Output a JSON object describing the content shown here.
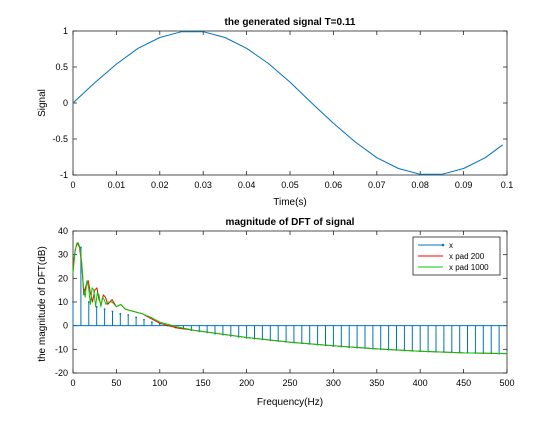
{
  "chart_data": [
    {
      "type": "line",
      "title": "the generated signal T=0.11",
      "xlabel": "Time(s)",
      "ylabel": "Signal",
      "xlim": [
        0,
        0.1
      ],
      "ylim": [
        -1,
        1
      ],
      "xticks": [
        "0",
        "0.01",
        "0.02",
        "0.03",
        "0.04",
        "0.05",
        "0.06",
        "0.07",
        "0.08",
        "0.09",
        "0.1"
      ],
      "xtick_values": [
        0,
        0.01,
        0.02,
        0.03,
        0.04,
        0.05,
        0.06,
        0.07,
        0.08,
        0.09,
        0.1
      ],
      "yticks": [
        "-1",
        "-0.5",
        "0",
        "0.5",
        "1"
      ],
      "ytick_values": [
        -1,
        -0.5,
        0,
        0.5,
        1
      ],
      "grid": false,
      "series": [
        {
          "color": "#0072BD",
          "x": [
            0,
            0.005,
            0.01,
            0.015,
            0.02,
            0.025,
            0.03,
            0.035,
            0.04,
            0.045,
            0.05,
            0.055,
            0.06,
            0.065,
            0.07,
            0.075,
            0.08,
            0.085,
            0.09,
            0.095,
            0.099
          ],
          "y": [
            0,
            0.28,
            0.54,
            0.76,
            0.91,
            0.99,
            0.99,
            0.91,
            0.76,
            0.55,
            0.29,
            0.0,
            -0.28,
            -0.54,
            -0.76,
            -0.91,
            -0.99,
            -0.99,
            -0.91,
            -0.76,
            -0.58
          ]
        }
      ]
    },
    {
      "type": "stem+line",
      "title": "magnitude of DFT of signal",
      "xlabel": "Frequency(Hz)",
      "ylabel": "the magnitude of DFT(dB)",
      "xlim": [
        0,
        500
      ],
      "ylim": [
        -20,
        40
      ],
      "xticks": [
        "0",
        "50",
        "100",
        "150",
        "200",
        "250",
        "300",
        "350",
        "400",
        "450",
        "500"
      ],
      "xtick_values": [
        0,
        50,
        100,
        150,
        200,
        250,
        300,
        350,
        400,
        450,
        500
      ],
      "yticks": [
        "-20",
        "-10",
        "0",
        "10",
        "20",
        "30",
        "40"
      ],
      "ytick_values": [
        -20,
        -10,
        0,
        10,
        20,
        30,
        40
      ],
      "grid": false,
      "legend_position": "top-right",
      "series": [
        {
          "name": "x",
          "style": "stem",
          "color": "#0072BD",
          "x": [
            0,
            9.1,
            18.2,
            27.3,
            36.4,
            45.5,
            54.5,
            63.6,
            72.7,
            81.8,
            90.9,
            100,
            109.1,
            118.2,
            127.3,
            136.4,
            145.5,
            154.5,
            163.6,
            172.7,
            181.8,
            190.9,
            200,
            209.1,
            218.2,
            227.3,
            236.4,
            245.5,
            254.5,
            263.6,
            272.7,
            281.8,
            290.9,
            300,
            309.1,
            318.2,
            327.3,
            336.4,
            345.5,
            354.5,
            363.6,
            372.7,
            381.8,
            390.9,
            400,
            409.1,
            418.2,
            427.3,
            436.4,
            445.5,
            454.5,
            463.6,
            472.7,
            481.8,
            490.9
          ],
          "y": [
            10,
            33,
            10,
            8,
            7,
            6,
            5,
            4.5,
            3.5,
            2.5,
            1.5,
            0.8,
            0,
            -0.8,
            -1.3,
            -1.9,
            -2.4,
            -2.9,
            -3.4,
            -3.8,
            -4.3,
            -4.7,
            -5.1,
            -5.5,
            -5.8,
            -6.2,
            -6.5,
            -6.8,
            -7.1,
            -7.4,
            -7.7,
            -8,
            -8.3,
            -8.6,
            -8.8,
            -9.1,
            -9.3,
            -9.5,
            -9.7,
            -9.9,
            -10.1,
            -10.3,
            -10.5,
            -10.6,
            -10.8,
            -10.9,
            -11,
            -11.1,
            -11.2,
            -11.3,
            -11.4,
            -11.5,
            -11.6,
            -11.7,
            -11.8
          ]
        },
        {
          "name": "x pad 200",
          "style": "line",
          "color": "#ff0000",
          "x": [
            0,
            2.5,
            5,
            7.5,
            10,
            12.5,
            15,
            17.5,
            20,
            22.5,
            25,
            27.5,
            30,
            32.5,
            35,
            37.5,
            40,
            45,
            50,
            55,
            60,
            70,
            80,
            90,
            100,
            120,
            140,
            160,
            180,
            200,
            250,
            300,
            350,
            400,
            450,
            500
          ],
          "y": [
            25,
            32,
            35,
            33,
            26,
            13,
            17,
            19,
            14,
            10,
            15,
            16,
            11,
            9,
            13,
            12,
            9,
            11,
            8,
            9,
            7,
            6,
            5,
            3,
            1,
            -1,
            -2,
            -3,
            -4,
            -5,
            -7,
            -8.5,
            -9.8,
            -10.8,
            -11.5,
            -11.8
          ]
        },
        {
          "name": "x pad 1000",
          "style": "line",
          "color": "#00cc00",
          "x": [
            0,
            2,
            4,
            6,
            8,
            10,
            12,
            14,
            16,
            18,
            20,
            22,
            24,
            26,
            28,
            30,
            32,
            34,
            36,
            38,
            40,
            45,
            50,
            55,
            60,
            70,
            80,
            90,
            100,
            120,
            140,
            160,
            180,
            200,
            250,
            300,
            350,
            400,
            450,
            500
          ],
          "y": [
            22,
            30,
            34.5,
            35,
            33,
            27,
            17,
            12,
            19,
            16,
            9,
            16,
            15,
            8,
            14,
            13,
            8,
            12,
            11,
            9,
            10,
            10,
            8,
            9,
            7,
            6,
            5,
            3.5,
            1.5,
            -0.5,
            -2,
            -3,
            -4,
            -5,
            -7,
            -8.5,
            -9.8,
            -10.8,
            -11.5,
            -11.8
          ]
        }
      ]
    }
  ]
}
